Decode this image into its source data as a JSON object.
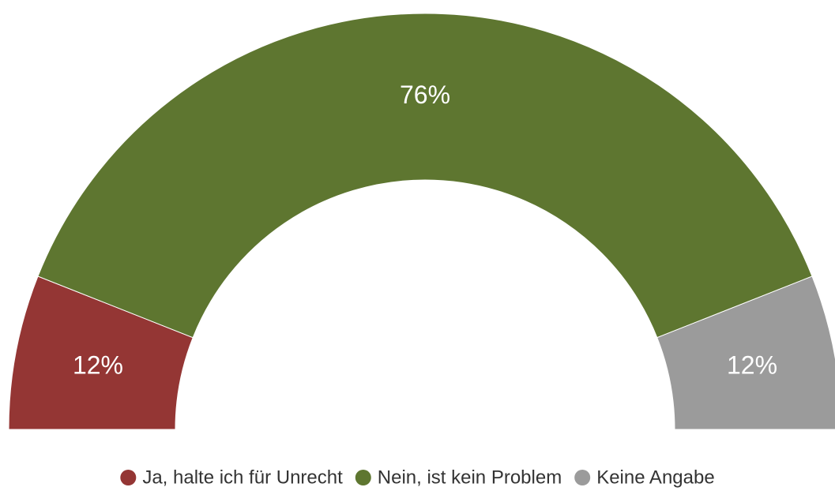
{
  "chart_data": {
    "type": "donut",
    "half": true,
    "categories": [
      "Ja, halte ich für Unrecht",
      "Nein, ist kein Problem",
      "Keine Angabe"
    ],
    "values": [
      12,
      76,
      12
    ],
    "value_labels": [
      "12%",
      "76%",
      "12%"
    ],
    "colors": [
      "#943634",
      "#5e7630",
      "#9b9b9b"
    ],
    "legend": "bottom"
  }
}
